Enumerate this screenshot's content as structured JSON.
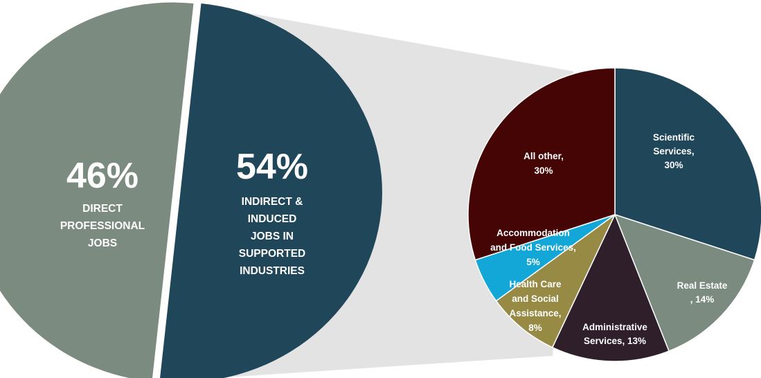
{
  "colors": {
    "direct": "#7c8b80",
    "indirect": "#1f4659",
    "background": "#ffffff",
    "connector": "#e3e3e3",
    "separator": "#ffffff"
  },
  "chart_data": [
    {
      "type": "pie",
      "slices": [
        {
          "id": "direct",
          "value": 46,
          "label": "46%",
          "caption": [
            "DIRECT",
            "PROFESSIONAL",
            "JOBS"
          ],
          "color": "#7c8b80"
        },
        {
          "id": "indirect",
          "value": 54,
          "label": "54%",
          "caption": [
            "INDIRECT &",
            "INDUCED",
            "JOBS IN",
            "SUPPORTED",
            "INDUSTRIES"
          ],
          "color": "#1f4659"
        }
      ]
    },
    {
      "type": "pie",
      "slices": [
        {
          "id": "scientific",
          "value": 30,
          "label": [
            "Scientific",
            "Services,",
            "30%"
          ],
          "color": "#1f4659"
        },
        {
          "id": "real-estate",
          "value": 14,
          "label": [
            "Real Estate",
            ", 14%"
          ],
          "color": "#7c8b80"
        },
        {
          "id": "administrative",
          "value": 13,
          "label": [
            "Administrative",
            "Services, 13%"
          ],
          "color": "#2e1f2b"
        },
        {
          "id": "health",
          "value": 8,
          "label": [
            "Health Care",
            "and Social",
            "Assistance,",
            "8%"
          ],
          "color": "#978a45"
        },
        {
          "id": "accommodation",
          "value": 5,
          "label": [
            "Accommodation",
            "and Food Services,",
            "5%"
          ],
          "color": "#12a7d6"
        },
        {
          "id": "all-other",
          "value": 30,
          "label": [
            "All other,",
            "30%"
          ],
          "color": "#450505"
        }
      ]
    }
  ]
}
